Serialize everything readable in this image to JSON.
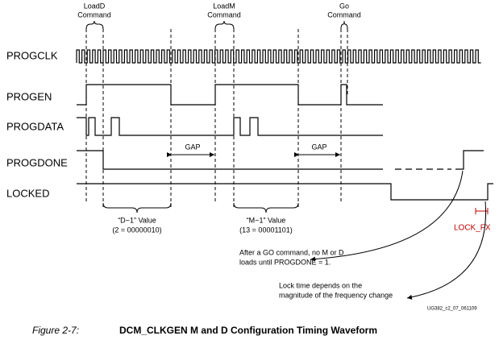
{
  "commands": [
    {
      "lines": [
        "LoadD",
        "Command"
      ]
    },
    {
      "lines": [
        "LoadM",
        "Command"
      ]
    },
    {
      "lines": [
        "Go",
        "Command"
      ]
    }
  ],
  "signals": [
    "PROGCLK",
    "PROGEN",
    "PROGDATA",
    "PROGDONE",
    "LOCKED"
  ],
  "gaps": [
    "GAP",
    "GAP"
  ],
  "values": [
    {
      "lines": [
        "“D−1” Value",
        "(2 = 00000010)"
      ]
    },
    {
      "lines": [
        "“M−1” Value",
        "(13 = 00001101)"
      ]
    }
  ],
  "notes": [
    {
      "lines": [
        "After a GO command, no M or D",
        "loads until PROGDONE = 1."
      ]
    },
    {
      "lines": [
        "Lock time depends on the",
        "magnitude of the frequency change"
      ]
    }
  ],
  "lock_label": "LOCK_FX",
  "doc_id": "UG382_c2_07_061109",
  "caption": {
    "number": "Figure 2-7:",
    "title": "DCM_CLKGEN M and D Configuration Timing Waveform"
  }
}
